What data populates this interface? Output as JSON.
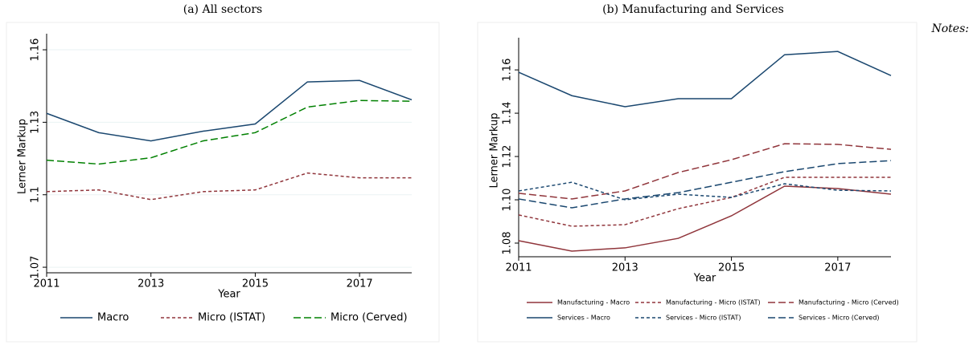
{
  "notes": "Notes:",
  "chart_data": [
    {
      "type": "line",
      "title": "(a) All sectors",
      "x_label": "Year",
      "y_label": "Lerner Markup",
      "x": [
        2011,
        2012,
        2013,
        2014,
        2015,
        2016,
        2017,
        2018
      ],
      "xlim": [
        2011,
        2018
      ],
      "xticks": [
        2011,
        2013,
        2015,
        2017
      ],
      "ylim": [
        1.0677,
        1.164
      ],
      "yticks": [
        1.07,
        1.1,
        1.13,
        1.16
      ],
      "grid": true,
      "legend": "bottom",
      "series": [
        {
          "name": "Macro",
          "color": "#1a476f",
          "dash": "solid",
          "values": [
            1.1337,
            1.1257,
            1.1223,
            1.1263,
            1.1293,
            1.1467,
            1.1473,
            1.1393
          ]
        },
        {
          "name": "Micro (ISTAT)",
          "color": "#90353b",
          "dash": "dashed",
          "values": [
            1.1013,
            1.102,
            1.098,
            1.1013,
            1.102,
            1.109,
            1.107,
            1.107
          ]
        },
        {
          "name": "Micro (Cerved)",
          "color": "#008000",
          "dash": "longdash",
          "values": [
            1.1143,
            1.1127,
            1.1153,
            1.1223,
            1.1257,
            1.1363,
            1.139,
            1.1387
          ]
        }
      ]
    },
    {
      "type": "line",
      "title": "(b) Manufacturing and Services",
      "x_label": "Year",
      "y_label": "Lerner Markup",
      "x": [
        2011,
        2012,
        2013,
        2014,
        2015,
        2016,
        2017,
        2018
      ],
      "xlim": [
        2011,
        2018
      ],
      "xticks": [
        2011,
        2013,
        2015,
        2017
      ],
      "ylim": [
        1.0737,
        1.1719
      ],
      "yticks": [
        1.08,
        {
          "value": 1.1,
          "label": "1.10"
        },
        1.12,
        1.14,
        1.16
      ],
      "grid": false,
      "legend": "bottom",
      "series": [
        {
          "name": "Manufacturing - Macro",
          "color": "#90353b",
          "dash": "solid",
          "values": [
            1.0811,
            1.0763,
            1.0778,
            1.0822,
            1.0926,
            1.1063,
            1.1052,
            1.1026
          ]
        },
        {
          "name": "Manufacturing - Micro (ISTAT)",
          "color": "#90353b",
          "dash": "dashed",
          "values": [
            1.093,
            1.0878,
            1.0885,
            1.0959,
            1.1011,
            1.1104,
            1.1104,
            1.1104
          ]
        },
        {
          "name": "Manufacturing - Micro (Cerved)",
          "color": "#90353b",
          "dash": "longdash",
          "values": [
            1.103,
            1.1004,
            1.1041,
            1.1126,
            1.1185,
            1.1259,
            1.1256,
            1.1233
          ]
        },
        {
          "name": "Services - Macro",
          "color": "#1a476f",
          "dash": "solid",
          "values": [
            1.1589,
            1.1481,
            1.143,
            1.1467,
            1.1467,
            1.167,
            1.1685,
            1.1574
          ]
        },
        {
          "name": "Services - Micro (ISTAT)",
          "color": "#1a476f",
          "dash": "dashed",
          "values": [
            1.1041,
            1.1081,
            1.1,
            1.1026,
            1.1011,
            1.1074,
            1.1044,
            1.1041
          ]
        },
        {
          "name": "Services - Micro (Cerved)",
          "color": "#1a476f",
          "dash": "longdash",
          "values": [
            1.1004,
            1.0963,
            1.1004,
            1.1033,
            1.1081,
            1.113,
            1.1167,
            1.1181
          ]
        }
      ]
    }
  ]
}
